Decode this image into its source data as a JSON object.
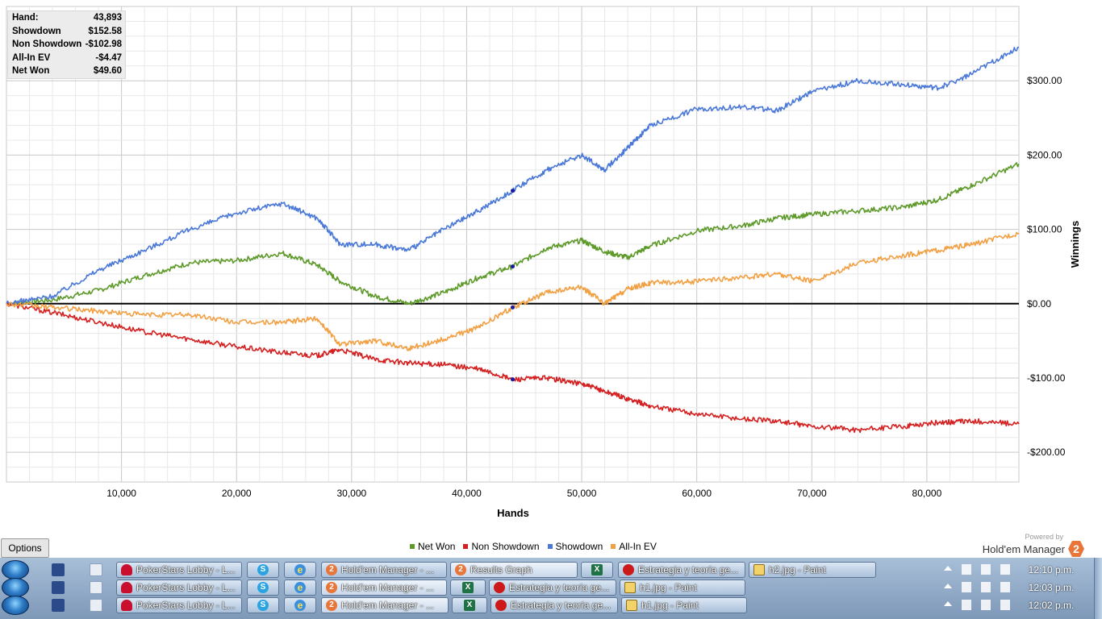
{
  "chart_data": {
    "type": "line",
    "xlabel": "Hands",
    "ylabel": "Winnings",
    "xlim": [
      0,
      88000
    ],
    "ylim": [
      -240,
      400
    ],
    "x_ticks": [
      {
        "value": 10000,
        "label": "10,000"
      },
      {
        "value": 20000,
        "label": "20,000"
      },
      {
        "value": 30000,
        "label": "30,000"
      },
      {
        "value": 40000,
        "label": "40,000"
      },
      {
        "value": 50000,
        "label": "50,000"
      },
      {
        "value": 60000,
        "label": "60,000"
      },
      {
        "value": 70000,
        "label": "70,000"
      },
      {
        "value": 80000,
        "label": "80,000"
      }
    ],
    "y_ticks": [
      {
        "value": 300,
        "label": "$300.00"
      },
      {
        "value": 200,
        "label": "$200.00"
      },
      {
        "value": 100,
        "label": "$100.00"
      },
      {
        "value": 0,
        "label": "$0.00"
      },
      {
        "value": -100,
        "label": "-$100.00"
      },
      {
        "value": -200,
        "label": "-$200.00"
      }
    ],
    "grid": true,
    "legend_position": "bottom",
    "x": [
      0,
      4000,
      8000,
      12000,
      16000,
      20000,
      24000,
      27000,
      29000,
      32000,
      35000,
      38000,
      41000,
      44000,
      47000,
      50000,
      52000,
      54000,
      56000,
      60000,
      64000,
      67000,
      70000,
      74000,
      78000,
      81000,
      84000,
      88000
    ],
    "series": [
      {
        "name": "Net Won",
        "color": "#5e9a2a",
        "values": [
          0,
          5,
          18,
          38,
          55,
          58,
          68,
          52,
          30,
          10,
          0,
          15,
          35,
          50,
          75,
          85,
          70,
          62,
          78,
          98,
          105,
          115,
          120,
          125,
          130,
          140,
          160,
          188
        ]
      },
      {
        "name": "Non Showdown",
        "color": "#d42020",
        "values": [
          0,
          -12,
          -25,
          -38,
          -48,
          -58,
          -66,
          -70,
          -62,
          -75,
          -80,
          -82,
          -88,
          -102,
          -100,
          -108,
          -118,
          -128,
          -138,
          -148,
          -155,
          -158,
          -165,
          -170,
          -165,
          -160,
          -158,
          -162
        ]
      },
      {
        "name": "Showdown",
        "color": "#4a78d8",
        "values": [
          0,
          10,
          45,
          72,
          100,
          122,
          135,
          115,
          80,
          80,
          72,
          100,
          125,
          152,
          180,
          200,
          180,
          210,
          240,
          262,
          265,
          260,
          285,
          300,
          295,
          290,
          310,
          345
        ]
      },
      {
        "name": "All-In EV",
        "color": "#f2a044",
        "values": [
          0,
          -5,
          -10,
          -15,
          -15,
          -25,
          -25,
          -20,
          -55,
          -50,
          -60,
          -48,
          -32,
          -5,
          15,
          22,
          0,
          20,
          28,
          30,
          35,
          40,
          30,
          55,
          65,
          72,
          80,
          95
        ]
      }
    ],
    "markers": [
      {
        "series": "Showdown",
        "x": 44000,
        "y": 152
      },
      {
        "series": "Net Won",
        "x": 44000,
        "y": 50
      },
      {
        "series": "All-In EV",
        "x": 44000,
        "y": -5
      },
      {
        "series": "Non Showdown",
        "x": 44000,
        "y": -102
      }
    ]
  },
  "stats": [
    {
      "label": "Hand:",
      "value": "43,893"
    },
    {
      "label": "Showdown",
      "value": "$152.58"
    },
    {
      "label": "Non Showdown",
      "value": "-$102.98"
    },
    {
      "label": "All-In EV",
      "value": "-$4.47"
    },
    {
      "label": "Net Won",
      "value": "$49.60"
    }
  ],
  "options_label": "Options",
  "legend": [
    "Net Won",
    "Non Showdown",
    "Showdown",
    "All-In EV"
  ],
  "brand": {
    "powered": "Powered by",
    "name": "Hold'em Manager",
    "logo": "2"
  },
  "taskbar": {
    "rows": [
      {
        "clock": "12:10 p.m.",
        "buttons": [
          {
            "label": "PokerStars Lobby - L...",
            "icon": "spade-icon"
          },
          {
            "label": "",
            "icon": "skype-icon"
          },
          {
            "label": "",
            "icon": "ie-icon"
          },
          {
            "label": "Hold'em Manager - ...",
            "icon": "holdem-manager-icon"
          },
          {
            "label": "Results Graph",
            "icon": "holdem-manager-icon"
          },
          {
            "label": "",
            "icon": "excel-icon"
          },
          {
            "label": "Estrategia y teoría ge...",
            "icon": "opera-icon"
          },
          {
            "label": "h2.jpg - Paint",
            "icon": "paint-icon"
          }
        ]
      },
      {
        "clock": "12:03 p.m.",
        "buttons": [
          {
            "label": "PokerStars Lobby - L...",
            "icon": "spade-icon"
          },
          {
            "label": "",
            "icon": "skype-icon"
          },
          {
            "label": "",
            "icon": "ie-icon"
          },
          {
            "label": "Hold'em Manager - ...",
            "icon": "holdem-manager-icon"
          },
          {
            "label": "",
            "icon": "excel-icon"
          },
          {
            "label": "Estrategia y teoría ge...",
            "icon": "opera-icon"
          },
          {
            "label": "h1.jpg - Paint",
            "icon": "paint-icon"
          }
        ]
      },
      {
        "clock": "12:02 p.m.",
        "buttons": [
          {
            "label": "PokerStars Lobby - L...",
            "icon": "spade-icon"
          },
          {
            "label": "",
            "icon": "skype-icon"
          },
          {
            "label": "",
            "icon": "ie-icon"
          },
          {
            "label": "Hold'em Manager - ...",
            "icon": "holdem-manager-icon"
          },
          {
            "label": "",
            "icon": "excel-icon"
          },
          {
            "label": "Estrategia y teoría ge...",
            "icon": "opera-icon"
          },
          {
            "label": "h1.jpg - Paint",
            "icon": "paint-icon"
          }
        ]
      }
    ]
  }
}
